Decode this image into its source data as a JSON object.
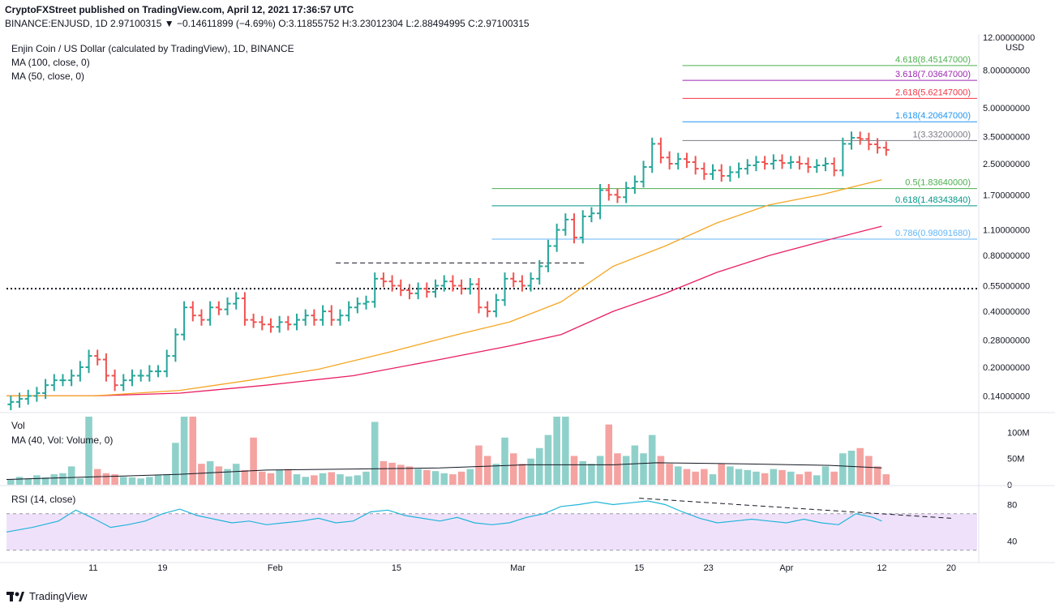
{
  "header": {
    "publish_line": "CryptoFXStreet published on TradingView.com, April 12, 2021 17:36:57 UTC",
    "symbol": "BINANCE:ENJUSD, 1D",
    "ohlc": "2.97100315 ▼ −0.14611899 (−4.69%) O:3.11855752 H:3.23012304 L:2.88494995 C:2.97100315",
    "title": "Enjin Coin / US Dollar (calculated by TradingView), 1D, BINANCE",
    "ma100": "MA (100, close, 0)",
    "ma50": "MA (50, close, 0)",
    "vol": "Vol",
    "vol_ma": "MA (40, Vol: Volume, 0)",
    "rsi": "RSI (14, close)"
  },
  "branding": {
    "logo": "TradingView"
  },
  "colors": {
    "up": "#26a69a",
    "down": "#ef5350",
    "ma50": "#f5a623",
    "ma100": "#e91e63",
    "rsi": "#21b5d8",
    "rsi_band": "#f0e1fb"
  },
  "chart_data": {
    "type": "ohlc",
    "price_axis": {
      "scale": "log",
      "currency": "USD",
      "range": [
        0.115,
        12.5
      ],
      "ticks": [
        "12.00000000",
        "8.00000000",
        "5.00000000",
        "3.50000000",
        "2.50000000",
        "1.70000000",
        "1.10000000",
        "0.80000000",
        "0.55000000",
        "0.40000000",
        "0.28000000",
        "0.20000000",
        "0.14000000"
      ],
      "tick_values": [
        12,
        8,
        5,
        3.5,
        2.5,
        1.7,
        1.1,
        0.8,
        0.55,
        0.4,
        0.28,
        0.2,
        0.14
      ]
    },
    "x_ticks": [
      {
        "label": "11",
        "day": 10
      },
      {
        "label": "19",
        "day": 18
      },
      {
        "label": "Feb",
        "day": 31
      },
      {
        "label": "15",
        "day": 45
      },
      {
        "label": "Mar",
        "day": 59
      },
      {
        "label": "15",
        "day": 73
      },
      {
        "label": "23",
        "day": 81
      },
      {
        "label": "Apr",
        "day": 90
      },
      {
        "label": "12",
        "day": 101
      },
      {
        "label": "20",
        "day": 109
      }
    ],
    "x_range_days": [
      0,
      112
    ],
    "fibonacci": [
      {
        "label": "4.618(8.45147000)",
        "value": 8.45147,
        "color": "#4caf50",
        "start_day": 78
      },
      {
        "label": "3.618(7.03647000)",
        "value": 7.03647,
        "color": "#9c27b0",
        "start_day": 78
      },
      {
        "label": "2.618(5.62147000)",
        "value": 5.62147,
        "color": "#f23645",
        "start_day": 78
      },
      {
        "label": "1.618(4.20647000)",
        "value": 4.20647,
        "color": "#2196f3",
        "start_day": 78
      },
      {
        "label": "1(3.33200000)",
        "value": 3.332,
        "color": "#787b86",
        "start_day": 78
      },
      {
        "label": "0.5(1.83640000)",
        "value": 1.8364,
        "color": "#4caf50",
        "start_day": 56
      },
      {
        "label": "0.618(1.48343840)",
        "value": 1.4834384,
        "color": "#009688",
        "start_day": 56
      },
      {
        "label": "0.786(0.98091680)",
        "value": 0.9809168,
        "color": "#64b5f6",
        "start_day": 56
      }
    ],
    "horizontal_lines": [
      {
        "value": 0.53,
        "style": "dotted",
        "start_day": 0,
        "end_day": 112
      },
      {
        "value": 0.73,
        "style": "dashed",
        "start_day": 38,
        "end_day": 67
      }
    ],
    "closes": [
      0.13,
      0.135,
      0.14,
      0.145,
      0.16,
      0.17,
      0.17,
      0.18,
      0.2,
      0.23,
      0.22,
      0.18,
      0.16,
      0.17,
      0.18,
      0.18,
      0.19,
      0.19,
      0.23,
      0.3,
      0.42,
      0.38,
      0.36,
      0.42,
      0.41,
      0.44,
      0.47,
      0.36,
      0.35,
      0.34,
      0.33,
      0.35,
      0.34,
      0.36,
      0.38,
      0.36,
      0.4,
      0.36,
      0.38,
      0.42,
      0.44,
      0.45,
      0.6,
      0.58,
      0.55,
      0.52,
      0.5,
      0.53,
      0.51,
      0.55,
      0.58,
      0.55,
      0.53,
      0.56,
      0.42,
      0.4,
      0.46,
      0.6,
      0.58,
      0.55,
      0.6,
      0.7,
      0.9,
      1.1,
      1.25,
      1.0,
      1.3,
      1.35,
      1.8,
      1.7,
      1.65,
      1.85,
      2.0,
      2.4,
      3.2,
      2.7,
      2.5,
      2.65,
      2.55,
      2.35,
      2.2,
      2.3,
      2.15,
      2.25,
      2.35,
      2.45,
      2.55,
      2.5,
      2.6,
      2.52,
      2.55,
      2.5,
      2.4,
      2.45,
      2.5,
      2.3,
      3.2,
      3.45,
      3.4,
      3.18,
      3.05,
      2.97
    ],
    "ma50": [
      [
        0,
        0.14
      ],
      [
        10,
        0.14
      ],
      [
        20,
        0.15
      ],
      [
        28,
        0.17
      ],
      [
        36,
        0.195
      ],
      [
        44,
        0.24
      ],
      [
        52,
        0.3
      ],
      [
        58,
        0.35
      ],
      [
        64,
        0.45
      ],
      [
        70,
        0.7
      ],
      [
        76,
        0.9
      ],
      [
        82,
        1.2
      ],
      [
        88,
        1.5
      ],
      [
        94,
        1.7
      ],
      [
        101,
        2.05
      ]
    ],
    "ma100": [
      [
        0,
        0.14
      ],
      [
        10,
        0.14
      ],
      [
        20,
        0.145
      ],
      [
        30,
        0.16
      ],
      [
        40,
        0.18
      ],
      [
        50,
        0.22
      ],
      [
        58,
        0.26
      ],
      [
        64,
        0.3
      ],
      [
        70,
        0.4
      ],
      [
        76,
        0.5
      ],
      [
        82,
        0.65
      ],
      [
        88,
        0.8
      ],
      [
        94,
        0.95
      ],
      [
        101,
        1.15
      ]
    ],
    "volume_axis": {
      "ticks": [
        "100M",
        "50M",
        "0"
      ],
      "tick_values": [
        100,
        50,
        0
      ],
      "max": 130
    },
    "volumes": [
      10,
      15,
      12,
      18,
      14,
      20,
      22,
      35,
      12,
      130,
      30,
      22,
      20,
      15,
      14,
      12,
      15,
      18,
      20,
      80,
      130,
      130,
      40,
      45,
      35,
      30,
      40,
      28,
      90,
      25,
      22,
      28,
      30,
      20,
      15,
      18,
      22,
      24,
      20,
      16,
      18,
      25,
      120,
      45,
      42,
      38,
      35,
      30,
      28,
      26,
      22,
      20,
      25,
      30,
      75,
      55,
      40,
      90,
      60,
      40,
      50,
      70,
      95,
      130,
      130,
      55,
      45,
      40,
      55,
      115,
      60,
      55,
      75,
      60,
      95,
      55,
      40,
      35,
      30,
      25,
      30,
      20,
      40,
      35,
      30,
      28,
      25,
      22,
      30,
      28,
      25,
      20,
      25,
      18,
      35,
      25,
      60,
      65,
      70,
      55,
      35,
      20
    ],
    "volume_ma": [
      [
        0,
        10
      ],
      [
        20,
        20
      ],
      [
        30,
        28
      ],
      [
        40,
        30
      ],
      [
        50,
        32
      ],
      [
        60,
        38
      ],
      [
        70,
        38
      ],
      [
        75,
        42
      ],
      [
        85,
        40
      ],
      [
        95,
        37
      ],
      [
        101,
        32
      ]
    ],
    "rsi_axis": {
      "ticks": [
        "80",
        "40"
      ],
      "tick_values": [
        80,
        40
      ],
      "range": [
        20,
        100
      ],
      "band": [
        30,
        70
      ]
    },
    "rsi": [
      [
        0,
        50
      ],
      [
        3,
        55
      ],
      [
        6,
        62
      ],
      [
        8,
        74
      ],
      [
        10,
        65
      ],
      [
        12,
        55
      ],
      [
        14,
        58
      ],
      [
        16,
        62
      ],
      [
        18,
        70
      ],
      [
        20,
        75
      ],
      [
        22,
        68
      ],
      [
        24,
        64
      ],
      [
        26,
        60
      ],
      [
        28,
        62
      ],
      [
        30,
        58
      ],
      [
        32,
        60
      ],
      [
        34,
        62
      ],
      [
        36,
        65
      ],
      [
        38,
        60
      ],
      [
        40,
        62
      ],
      [
        42,
        72
      ],
      [
        44,
        74
      ],
      [
        46,
        68
      ],
      [
        48,
        65
      ],
      [
        50,
        62
      ],
      [
        52,
        66
      ],
      [
        54,
        60
      ],
      [
        56,
        58
      ],
      [
        58,
        60
      ],
      [
        60,
        66
      ],
      [
        62,
        70
      ],
      [
        64,
        78
      ],
      [
        66,
        80
      ],
      [
        68,
        83
      ],
      [
        70,
        80
      ],
      [
        72,
        82
      ],
      [
        74,
        84
      ],
      [
        76,
        80
      ],
      [
        78,
        72
      ],
      [
        80,
        65
      ],
      [
        82,
        60
      ],
      [
        84,
        62
      ],
      [
        86,
        64
      ],
      [
        88,
        62
      ],
      [
        90,
        60
      ],
      [
        92,
        64
      ],
      [
        94,
        60
      ],
      [
        96,
        58
      ],
      [
        98,
        70
      ],
      [
        100,
        66
      ],
      [
        101,
        62
      ]
    ],
    "rsi_trendline": [
      [
        73,
        87
      ],
      [
        109,
        65
      ]
    ]
  }
}
